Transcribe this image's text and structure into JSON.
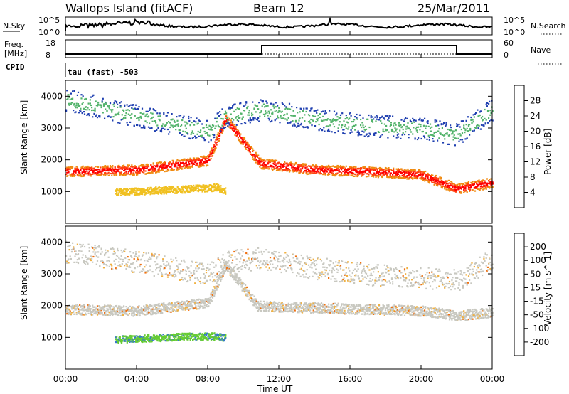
{
  "header": {
    "station": "Wallops Island (fitACF)",
    "beam": "Beam 12",
    "date": "25/Mar/2011"
  },
  "top_strips": {
    "nsky_label": "N.Sky",
    "nsky_ticks": [
      "10^5",
      "10^0"
    ],
    "nsearch_label": "N.Search",
    "nsearch_ticks": [
      "10^5",
      "10^0"
    ],
    "freq_label_line1": "Freq.",
    "freq_label_line2": "[MHz]",
    "freq_ticks": [
      "18",
      "8"
    ],
    "nave_label": "Nave",
    "nave_ticks": [
      "60",
      "0"
    ],
    "cpid_label": "CPID",
    "cpid_text": "tau (fast) -503"
  },
  "colors": {
    "power_scale": [
      "#0000ff",
      "#1f3fb0",
      "#2e7d5a",
      "#52b36a",
      "#a6d94a",
      "#f0c020",
      "#f08a10",
      "#ff4010",
      "#ff0000"
    ],
    "velocity_scale": [
      "#2222aa",
      "#3377cc",
      "#66cc33",
      "#c8c8c0",
      "#f0b040",
      "#f07010",
      "#ff0000"
    ]
  },
  "chart_data": [
    {
      "type": "heatmap",
      "name": "power",
      "xlabel": "Time UT",
      "ylabel": "Slant Range [km]",
      "colorbar_label": "Power [dB]",
      "x_range": [
        "00:00",
        "24:00"
      ],
      "y_range": [
        0,
        4500
      ],
      "yticks": [
        "1000",
        "2000",
        "3000",
        "4000"
      ],
      "colorbar_ticks": [
        "28",
        "24",
        "20",
        "16",
        "12",
        "8",
        "4"
      ],
      "colorbar_range": [
        0,
        32
      ],
      "bands": [
        {
          "x": [
            0,
            4,
            8,
            9,
            10.8,
            11,
            14,
            17,
            20,
            22,
            24
          ],
          "y": [
            1650,
            1700,
            2000,
            3300,
            2000,
            1900,
            1700,
            1650,
            1550,
            1100,
            1300
          ],
          "value": 26
        },
        {
          "x": [
            0,
            4,
            8,
            9,
            11,
            14,
            17,
            20,
            22,
            24
          ],
          "y": [
            3900,
            3400,
            2900,
            3400,
            3600,
            3300,
            3100,
            3000,
            2800,
            3600
          ],
          "value": 12
        },
        {
          "x": [
            2.8,
            5,
            7,
            8.5,
            9
          ],
          "y": [
            1000,
            1050,
            1100,
            1150,
            1050
          ],
          "value": 18
        }
      ]
    },
    {
      "type": "heatmap",
      "name": "velocity",
      "xlabel": "Time UT",
      "ylabel": "Slant Range [km]",
      "colorbar_label": "Velocity [m s^-1]",
      "x_range": [
        "00:00",
        "24:00"
      ],
      "y_range": [
        0,
        4500
      ],
      "yticks": [
        "1000",
        "2000",
        "3000",
        "4000"
      ],
      "colorbar_ticks": [
        "200",
        "100",
        "50",
        "15",
        "-15",
        "-50",
        "-100",
        "-200"
      ],
      "bands": [
        {
          "x": [
            0,
            4,
            8,
            9,
            10.8,
            11,
            14,
            17,
            20,
            22,
            24
          ],
          "y": [
            1900,
            1850,
            2100,
            3300,
            2000,
            2000,
            1950,
            1900,
            1850,
            1700,
            1800
          ],
          "value": 0
        },
        {
          "x": [
            0,
            4,
            8,
            9,
            11,
            14,
            17,
            20,
            22,
            24
          ],
          "y": [
            3700,
            3400,
            3000,
            3400,
            3500,
            3200,
            3000,
            2900,
            2800,
            3500
          ],
          "value": 0
        },
        {
          "x": [
            2.8,
            5,
            7,
            8.5,
            9
          ],
          "y": [
            950,
            1000,
            1050,
            1050,
            1000
          ],
          "value": 40
        }
      ]
    }
  ],
  "x_axis": {
    "ticks": [
      "00:00",
      "04:00",
      "08:00",
      "12:00",
      "16:00",
      "20:00",
      "00:00"
    ],
    "label": "Time UT"
  }
}
